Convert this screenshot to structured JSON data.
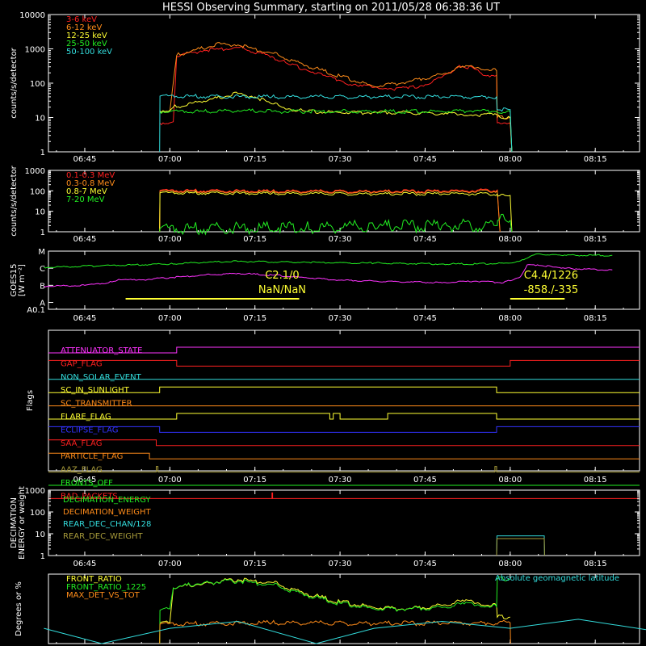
{
  "title": "HESSI Observing Summary, starting on 2011/05/28 06:38:36 UT",
  "colors": {
    "background": "#000000",
    "axis": "#ffffff",
    "red": "#ff2020",
    "orange": "#ff8c1a",
    "yellow": "#ffff33",
    "green": "#22ee22",
    "cyan": "#33dddd",
    "magenta": "#ff33ff",
    "blue": "#3333ff",
    "olive": "#a89b3a"
  },
  "chart_data": [
    {
      "id": "lightcurves",
      "type": "line",
      "ylabel": "counts/s/detector",
      "yscale": "log",
      "ylim": [
        1,
        10000
      ],
      "yticks": [
        "1",
        "10",
        "100",
        "1000",
        "10000"
      ],
      "xtick_labels": [
        "06:45",
        "07:00",
        "07:15",
        "07:30",
        "07:45",
        "08:00",
        "08:15"
      ],
      "series": [
        {
          "name": "3-6 keV",
          "color": "red",
          "x": [
            6.97,
            7.0,
            7.01,
            7.02,
            7.05,
            7.1,
            7.2,
            7.3,
            7.35,
            7.4,
            7.45,
            7.5,
            7.55,
            7.6,
            7.65,
            7.7,
            7.75,
            7.8,
            7.85,
            7.9,
            7.92,
            7.96,
            7.962,
            8.0,
            8.005
          ],
          "y": [
            7,
            7,
            7.5,
            600,
            750,
            900,
            1100,
            600,
            350,
            250,
            170,
            120,
            85,
            75,
            70,
            70,
            90,
            150,
            330,
            250,
            170,
            170,
            7,
            7,
            1
          ]
        },
        {
          "name": "6-12 keV",
          "color": "orange",
          "x": [
            6.97,
            7.0,
            7.02,
            7.05,
            7.15,
            7.2,
            7.3,
            7.4,
            7.5,
            7.6,
            7.7,
            7.8,
            7.85,
            7.9,
            7.96,
            7.962,
            8.0,
            8.005
          ],
          "y": [
            15,
            15,
            650,
            800,
            1400,
            1300,
            750,
            330,
            160,
            80,
            110,
            180,
            300,
            280,
            230,
            10,
            10,
            1
          ]
        },
        {
          "name": "12-25 keV",
          "color": "yellow",
          "x": [
            6.97,
            7.0,
            7.01,
            7.1,
            7.2,
            7.25,
            7.3,
            7.35,
            7.4,
            7.5,
            7.6,
            7.7,
            7.8,
            7.85,
            7.9,
            7.95,
            7.97,
            8.0,
            8.005
          ],
          "y": [
            16,
            16,
            20,
            30,
            50,
            40,
            25,
            18,
            15,
            14,
            14,
            14,
            13,
            12,
            12,
            12,
            10,
            10,
            1
          ]
        },
        {
          "name": "25-50 keV",
          "color": "green",
          "x": [
            6.97,
            7.0,
            7.1,
            7.2,
            7.3,
            7.4,
            7.5,
            7.6,
            7.7,
            7.8,
            7.9,
            7.95,
            8.0,
            8.005
          ],
          "y": [
            15,
            15,
            15,
            16,
            15,
            15,
            15,
            15,
            15,
            15,
            16,
            15,
            15,
            1
          ]
        },
        {
          "name": "50-100 keV",
          "color": "cyan",
          "x": [
            6.97,
            6.971,
            7.3,
            7.6,
            7.96,
            7.961,
            8.0,
            8.005
          ],
          "y": [
            1,
            42,
            40,
            40,
            40,
            17,
            17,
            1
          ]
        }
      ]
    },
    {
      "id": "high-energy",
      "type": "line",
      "ylabel": "counts/s/detector",
      "yscale": "log",
      "ylim": [
        1,
        1000
      ],
      "yticks": [
        "1",
        "10",
        "100",
        "1000"
      ],
      "xtick_labels": [
        "06:45",
        "07:00",
        "07:15",
        "07:30",
        "07:45",
        "08:00",
        "08:15"
      ],
      "series": [
        {
          "name": "0.1-0.3 MeV",
          "color": "red",
          "x": [
            6.97,
            6.971,
            7.3,
            7.6,
            7.85,
            7.962,
            7.97
          ],
          "y": [
            1,
            105,
            98,
            95,
            100,
            110,
            1
          ]
        },
        {
          "name": "0.3-0.8 MeV",
          "color": "orange",
          "x": [
            6.97,
            6.971,
            7.3,
            7.6,
            7.85,
            7.962,
            7.97
          ],
          "y": [
            1,
            95,
            90,
            88,
            90,
            100,
            1
          ]
        },
        {
          "name": "0.8-7 MeV",
          "color": "yellow",
          "x": [
            6.97,
            6.971,
            7.3,
            7.6,
            7.85,
            7.962,
            7.963,
            8.0,
            8.005
          ],
          "y": [
            1,
            80,
            75,
            70,
            72,
            70,
            55,
            60,
            1
          ]
        },
        {
          "name": "7-20 MeV",
          "color": "green",
          "x": [
            6.97,
            6.971,
            7.4,
            7.6,
            7.8,
            7.962,
            7.963,
            8.0,
            8.005
          ],
          "y": [
            1,
            1.4,
            1.6,
            1.8,
            2,
            2,
            3.5,
            3.5,
            1
          ]
        }
      ]
    },
    {
      "id": "goes",
      "type": "line",
      "ylabel": "GOES15",
      "ylabel2": "[W m⁻²]",
      "yticks": [
        "A0.1",
        "A",
        "B",
        "C",
        "M"
      ],
      "xtick_labels": [
        "06:45",
        "07:00",
        "07:15",
        "07:30",
        "07:45",
        "08:00",
        "08:15"
      ],
      "series": [
        {
          "name": "GOES high",
          "color": "green",
          "x": [
            6.63,
            6.8,
            7.0,
            7.1,
            7.2,
            7.4,
            7.6,
            7.8,
            7.9,
            8.0,
            8.04,
            8.08,
            8.15,
            8.3
          ],
          "y": [
            2.05,
            2.15,
            2.25,
            2.35,
            2.4,
            2.35,
            2.3,
            2.25,
            2.25,
            2.3,
            2.5,
            2.85,
            2.75,
            2.75
          ]
        },
        {
          "name": "GOES low",
          "color": "magenta",
          "x": [
            6.63,
            6.75,
            6.82,
            6.85,
            6.9,
            7.0,
            7.1,
            7.2,
            7.3,
            7.4,
            7.5,
            7.6,
            7.7,
            7.8,
            7.9,
            7.98,
            8.03,
            8.05,
            8.08,
            8.15,
            8.3
          ],
          "y": [
            0.95,
            1.0,
            1.15,
            1.35,
            1.3,
            1.45,
            1.6,
            1.7,
            1.6,
            1.45,
            1.3,
            1.25,
            1.2,
            1.15,
            1.25,
            1.15,
            1.5,
            2.2,
            2.2,
            2.0,
            1.9
          ]
        }
      ],
      "annotations": [
        {
          "text": "C2.1/0",
          "color": "yellow",
          "at_time": 7.33
        },
        {
          "text": "NaN/NaN",
          "color": "yellow",
          "at_time": 7.33
        },
        {
          "text": "C4.4/1226",
          "color": "yellow",
          "at_time": 8.12
        },
        {
          "text": "-858./-335",
          "color": "yellow",
          "at_time": 8.12
        }
      ],
      "flare_bars": [
        {
          "start": 6.87,
          "end": 7.38,
          "color": "yellow"
        },
        {
          "start": 8.0,
          "end": 8.16,
          "color": "yellow"
        }
      ]
    },
    {
      "id": "flags",
      "type": "line",
      "ylabel": "Flags",
      "xtick_labels": [
        "06:45",
        "07:00",
        "07:15",
        "07:30",
        "07:45",
        "08:00",
        "08:15"
      ],
      "series": [
        {
          "name": "ATTENUATOR_STATE",
          "color": "magenta",
          "steps": [
            [
              6.63,
              0
            ],
            [
              7.02,
              1
            ]
          ]
        },
        {
          "name": "GAP_FLAG",
          "color": "red",
          "steps": [
            [
              6.63,
              1
            ],
            [
              7.02,
              0
            ],
            [
              8.0,
              1
            ]
          ]
        },
        {
          "name": "NON_SOLAR_EVENT",
          "color": "cyan",
          "steps": [
            [
              6.63,
              0
            ]
          ]
        },
        {
          "name": "SC_IN_SUNLIGHT",
          "color": "yellow",
          "steps": [
            [
              6.63,
              0
            ],
            [
              6.97,
              1
            ],
            [
              7.96,
              0
            ]
          ]
        },
        {
          "name": "SC_TRANSMITTER",
          "color": "orange",
          "steps": [
            [
              6.63,
              0
            ]
          ]
        },
        {
          "name": "FLARE_FLAG",
          "color": "yellow",
          "steps": [
            [
              6.63,
              0
            ],
            [
              7.02,
              1
            ],
            [
              7.47,
              0
            ],
            [
              7.48,
              1
            ],
            [
              7.5,
              0
            ],
            [
              7.64,
              1
            ],
            [
              7.96,
              0
            ]
          ]
        },
        {
          "name": "ECLIPSE_FLAG",
          "color": "blue",
          "steps": [
            [
              6.63,
              1
            ],
            [
              6.97,
              0
            ],
            [
              7.96,
              1
            ]
          ]
        },
        {
          "name": "SAA_FLAG",
          "color": "red",
          "steps": [
            [
              6.63,
              1
            ],
            [
              6.96,
              0
            ]
          ]
        },
        {
          "name": "PARTICLE_FLAG",
          "color": "orange",
          "steps": [
            [
              6.63,
              1
            ],
            [
              6.94,
              0
            ]
          ]
        },
        {
          "name": "AAZ_FLAG",
          "color": "olive",
          "steps": [
            [
              6.63,
              0
            ],
            [
              6.96,
              1
            ],
            [
              6.965,
              0
            ],
            [
              7.955,
              1
            ],
            [
              7.96,
              0
            ]
          ]
        },
        {
          "name": "FRONTS_OFF",
          "color": "green",
          "steps": [
            [
              6.63,
              0
            ]
          ]
        },
        {
          "name": "BAD_PACKETS",
          "color": "red",
          "steps": [
            [
              6.63,
              0
            ],
            [
              7.3,
              1
            ],
            [
              7.302,
              0
            ]
          ]
        }
      ]
    },
    {
      "id": "decimation",
      "type": "line",
      "ylabel": "DECIMATION",
      "ylabel2": "ENERGY or weight",
      "yscale": "log",
      "ylim": [
        1,
        1000
      ],
      "yticks": [
        "1",
        "10",
        "100",
        "1000"
      ],
      "xtick_labels": [
        "06:45",
        "07:00",
        "07:15",
        "07:30",
        "07:45",
        "08:00",
        "08:15"
      ],
      "series": [
        {
          "name": "DECIMATION_ENERGY",
          "color": "green",
          "x": [],
          "y": []
        },
        {
          "name": "DECIMATION_WEIGHT",
          "color": "orange",
          "x": [],
          "y": []
        },
        {
          "name": "REAR_DEC_CHAN/128",
          "color": "cyan",
          "x": [
            7.96,
            7.961,
            8.1,
            8.101
          ],
          "y": [
            1,
            8,
            8,
            1
          ]
        },
        {
          "name": "REAR_DEC_WEIGHT",
          "color": "olive",
          "x": [
            7.96,
            7.961,
            8.1,
            8.101
          ],
          "y": [
            1,
            6,
            6,
            1
          ]
        }
      ]
    },
    {
      "id": "ratios",
      "type": "line",
      "ylabel": "Degrees or %",
      "yticks": [],
      "xtick_labels": [],
      "series": [
        {
          "name": "FRONT_RATIO",
          "color": "yellow",
          "x": [
            6.97,
            6.971,
            7.0,
            7.01,
            7.1,
            7.2,
            7.3,
            7.4,
            7.5,
            7.6,
            7.7,
            7.8,
            7.85,
            7.9,
            7.96,
            7.962,
            8.0
          ],
          "y": [
            0,
            30,
            30,
            80,
            87,
            92,
            88,
            72,
            60,
            52,
            50,
            55,
            62,
            58,
            54,
            38,
            38
          ]
        },
        {
          "name": "FRONT_RATIO_1225",
          "color": "green",
          "x": [
            6.97,
            6.971,
            7.0,
            7.01,
            7.1,
            7.2,
            7.3,
            7.4,
            7.5,
            7.6,
            7.7,
            7.8,
            7.85,
            7.9,
            7.96,
            7.962,
            8.0
          ],
          "y": [
            0,
            48,
            50,
            80,
            88,
            90,
            85,
            70,
            58,
            50,
            50,
            52,
            58,
            55,
            53,
            93,
            93
          ]
        },
        {
          "name": "MAX_DET_VS_TOT",
          "color": "orange",
          "x": [
            6.97,
            6.971,
            7.3,
            7.6,
            8.0,
            8.001
          ],
          "y": [
            0,
            28,
            30,
            29,
            30,
            0
          ]
        },
        {
          "name": "Absolute geomagnetic latitude",
          "color": "cyan",
          "x": [
            6.63,
            6.8,
            7.0,
            7.2,
            7.43,
            7.6,
            7.8,
            8.0,
            8.2,
            8.4
          ],
          "y": [
            22,
            0,
            22,
            32,
            0,
            22,
            32,
            22,
            35,
            20
          ]
        }
      ]
    }
  ]
}
